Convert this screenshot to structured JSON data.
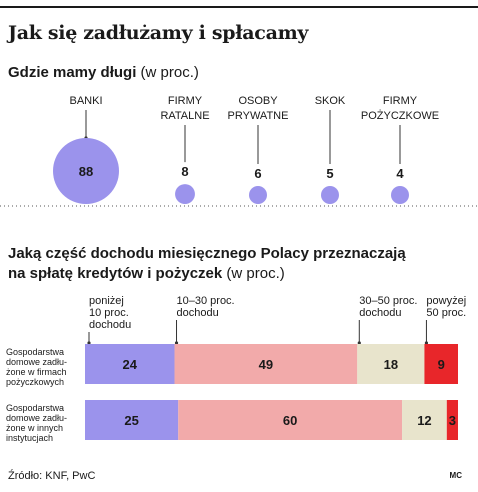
{
  "header": {
    "title": "Jak się zadłużamy i spłacamy"
  },
  "section1": {
    "title_bold": "Gdzie mamy długi",
    "title_unit": " (w proc.)"
  },
  "section2": {
    "title_line1": "Jaką część dochodu miesięcznego Polacy przeznaczają",
    "title_line2_bold": "na spłatę kredytów i pożyczek",
    "title_unit": " (w proc.)"
  },
  "footer": {
    "source": "Źródło: KNF, PwC",
    "credit": "MC"
  },
  "chart_data": [
    {
      "type": "bubble",
      "categories": [
        [
          "BANKI"
        ],
        [
          "FIRMY",
          "RATALNE"
        ],
        [
          "OSOBY",
          "PRYWATNE"
        ],
        [
          "SKOK"
        ],
        [
          "FIRMY",
          "POŻYCZKOWE"
        ]
      ],
      "values": [
        88,
        8,
        6,
        5,
        4
      ],
      "color": "#9b93ec"
    },
    {
      "type": "stacked-bar-horizontal",
      "segment_labels": [
        [
          "poniżej",
          "10 proc.",
          "dochodu"
        ],
        [
          "10–30 proc.",
          "dochodu"
        ],
        [
          "30–50 proc.",
          "dochodu"
        ],
        [
          "powyżej",
          "50 proc."
        ]
      ],
      "colors": [
        "#9b93ec",
        "#f2aaaa",
        "#e8e4cc",
        "#e8262a"
      ],
      "rows": [
        {
          "label": [
            "Gospodarstwa",
            "domowe zadłu-",
            "żone w firmach",
            "pożyczkowych"
          ],
          "values": [
            24,
            49,
            18,
            9
          ]
        },
        {
          "label": [
            "Gospodarstwa",
            "domowe zadłu-",
            "żone w innych",
            "instytucjach"
          ],
          "values": [
            25,
            60,
            12,
            3
          ]
        }
      ]
    }
  ]
}
